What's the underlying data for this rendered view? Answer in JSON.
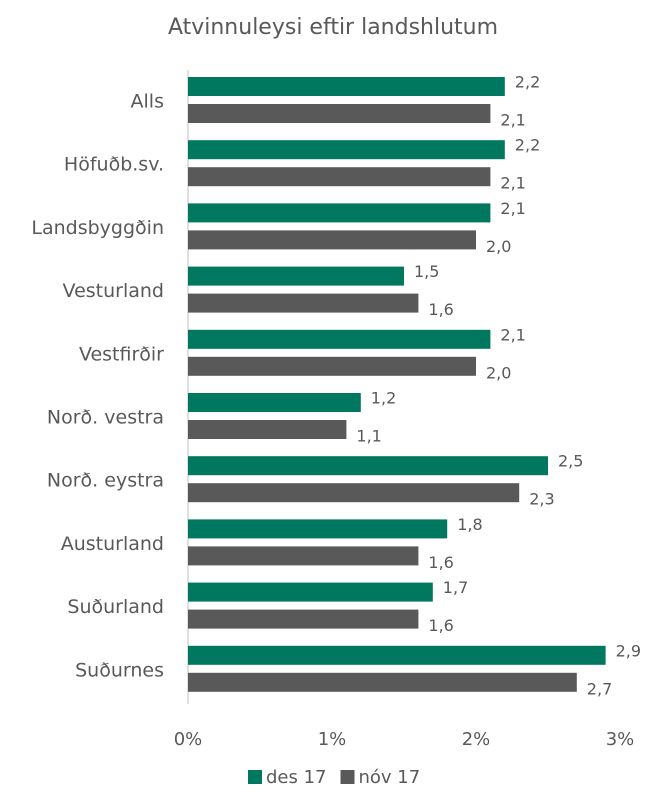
{
  "chart_data": {
    "type": "hbar",
    "title": "Atvinnuleysi eftir landshlutum",
    "categories": [
      "Alls",
      "Höfuðb.sv.",
      "Landsbyggðin",
      "Vesturland",
      "Vestfirðir",
      "Norð. vestra",
      "Norð. eystra",
      "Austurland",
      "Suðurland",
      "Suðurnes"
    ],
    "series": [
      {
        "name": "des 17",
        "color": "#00775f",
        "values": [
          2.2,
          2.2,
          2.1,
          1.5,
          2.1,
          1.2,
          2.5,
          1.8,
          1.7,
          2.9
        ],
        "value_labels": [
          "2,2",
          "2,2",
          "2,1",
          "1,5",
          "2,1",
          "1,2",
          "2,5",
          "1,8",
          "1,7",
          "2,9"
        ]
      },
      {
        "name": "nóv 17",
        "color": "#595959",
        "values": [
          2.1,
          2.1,
          2.0,
          1.6,
          2.0,
          1.1,
          2.3,
          1.6,
          1.6,
          2.7
        ],
        "value_labels": [
          "2,1",
          "2,1",
          "2,0",
          "1,6",
          "2,0",
          "1,1",
          "2,3",
          "1,6",
          "1,6",
          "2,7"
        ]
      }
    ],
    "xlim": [
      0,
      3
    ],
    "xticks": [
      {
        "value": 0,
        "label": "0%"
      },
      {
        "value": 1,
        "label": "1%"
      },
      {
        "value": 2,
        "label": "2%"
      },
      {
        "value": 3,
        "label": "3%"
      }
    ],
    "legend": "bottom",
    "grid": false
  }
}
